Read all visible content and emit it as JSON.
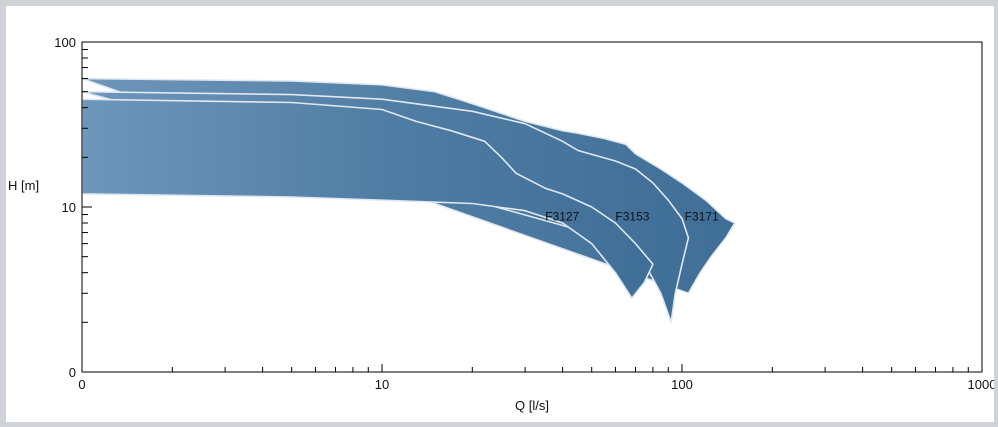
{
  "chart_data": {
    "type": "area",
    "xlabel": "Q [l/s]",
    "ylabel": "H [m]",
    "x_scale": "log",
    "xlim": [
      1,
      1000
    ],
    "x_ticks": [
      {
        "value": 1,
        "label": "0"
      },
      {
        "value": 10,
        "label": "10"
      },
      {
        "value": 100,
        "label": "100"
      },
      {
        "value": 1000,
        "label": "1000"
      }
    ],
    "y_scale": "log",
    "ylim": [
      1,
      100
    ],
    "y_ticks": [
      {
        "value": 1,
        "label": "0"
      },
      {
        "value": 10,
        "label": "10"
      },
      {
        "value": 100,
        "label": "100"
      }
    ],
    "grid": false,
    "fill_color": "#4f7ca3",
    "series": [
      {
        "name": "F3171",
        "upper": [
          [
            1,
            60
          ],
          [
            5,
            58
          ],
          [
            10,
            55
          ],
          [
            15,
            50
          ],
          [
            18,
            45
          ],
          [
            22,
            40
          ],
          [
            30,
            33
          ],
          [
            40,
            29
          ],
          [
            45,
            28
          ],
          [
            55,
            26
          ],
          [
            65,
            24
          ],
          [
            70,
            21
          ],
          [
            85,
            17
          ],
          [
            100,
            14
          ],
          [
            120,
            11
          ],
          [
            140,
            8.5
          ],
          [
            150,
            8
          ]
        ],
        "lower": [
          [
            150,
            8
          ],
          [
            140,
            6.5
          ],
          [
            125,
            5
          ],
          [
            115,
            4
          ],
          [
            105,
            3
          ]
        ]
      },
      {
        "name": "F3153",
        "upper": [
          [
            1,
            50
          ],
          [
            5,
            48
          ],
          [
            10,
            45
          ],
          [
            20,
            38
          ],
          [
            30,
            32
          ],
          [
            40,
            25
          ],
          [
            45,
            22
          ],
          [
            60,
            19
          ],
          [
            70,
            17
          ],
          [
            80,
            14
          ],
          [
            90,
            11
          ],
          [
            100,
            8.5
          ],
          [
            105,
            6.5
          ],
          [
            100,
            4.5
          ],
          [
            95,
            3
          ],
          [
            92,
            2
          ]
        ],
        "lower": [
          [
            92,
            2
          ],
          [
            85,
            3
          ],
          [
            78,
            4
          ],
          [
            72,
            5
          ],
          [
            60,
            6.3
          ]
        ]
      },
      {
        "name": "F3127",
        "upper": [
          [
            1,
            45
          ],
          [
            5,
            43
          ],
          [
            10,
            39
          ],
          [
            13,
            33
          ],
          [
            17,
            29
          ],
          [
            22,
            25
          ],
          [
            25,
            20
          ],
          [
            28,
            16
          ],
          [
            35,
            13
          ],
          [
            40,
            12
          ],
          [
            50,
            10
          ],
          [
            60,
            8
          ],
          [
            70,
            6
          ],
          [
            80,
            4.5
          ]
        ],
        "lower": [
          [
            80,
            4.5
          ],
          [
            75,
            3.5
          ],
          [
            68,
            2.8
          ],
          [
            60,
            4
          ],
          [
            50,
            6
          ],
          [
            40,
            8
          ],
          [
            30,
            9.5
          ],
          [
            20,
            10.5
          ],
          [
            10,
            11
          ],
          [
            5,
            11.5
          ],
          [
            1,
            12
          ]
        ]
      }
    ]
  }
}
